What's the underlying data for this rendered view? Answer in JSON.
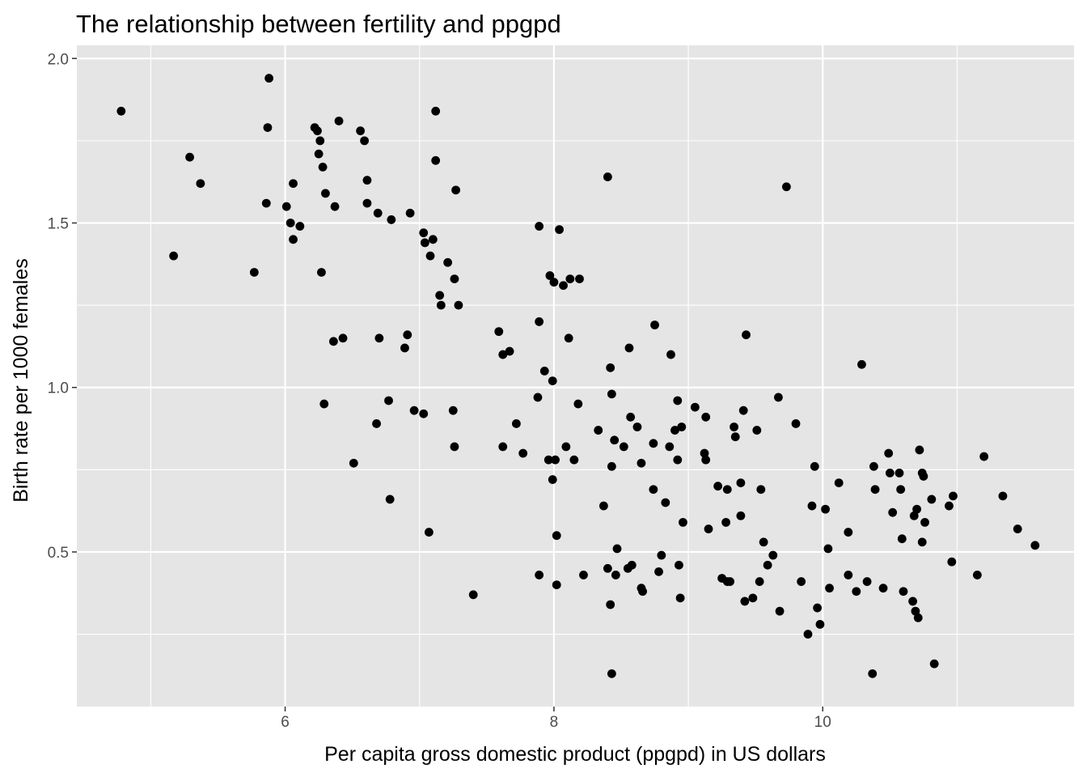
{
  "chart_data": {
    "type": "scatter",
    "title": "The relationship between fertility and ppgpd",
    "xlabel": "Per capita gross domestic product (ppgpd) in US dollars",
    "ylabel": "Birth rate per 1000 females",
    "xlim": [
      4.45,
      11.87
    ],
    "ylim": [
      0.03,
      2.04
    ],
    "xticks": [
      6,
      8,
      10
    ],
    "xtick_labels": [
      "6",
      "8",
      "10"
    ],
    "yticks": [
      0.5,
      1.0,
      1.5,
      2.0
    ],
    "ytick_labels": [
      "0.5",
      "1.0",
      "1.5",
      "2.0"
    ],
    "x_minor": [
      5,
      7,
      9,
      11
    ],
    "y_minor": [
      0.25,
      0.75,
      1.25,
      1.75
    ],
    "grid": true,
    "legend": "none",
    "colors": {
      "panel": "#e5e5e5",
      "grid": "#ffffff",
      "point": "#000000",
      "tick": "#4d4d4d"
    },
    "points": [
      [
        4.78,
        1.84
      ],
      [
        5.17,
        1.4
      ],
      [
        5.29,
        1.7
      ],
      [
        5.37,
        1.62
      ],
      [
        5.77,
        1.35
      ],
      [
        5.86,
        1.56
      ],
      [
        5.87,
        1.79
      ],
      [
        5.88,
        1.94
      ],
      [
        6.01,
        1.55
      ],
      [
        6.04,
        1.5
      ],
      [
        6.06,
        1.45
      ],
      [
        6.06,
        1.62
      ],
      [
        6.11,
        1.49
      ],
      [
        6.22,
        1.79
      ],
      [
        6.24,
        1.78
      ],
      [
        6.25,
        1.71
      ],
      [
        6.26,
        1.75
      ],
      [
        6.27,
        1.35
      ],
      [
        6.28,
        1.67
      ],
      [
        6.29,
        0.95
      ],
      [
        6.3,
        1.59
      ],
      [
        6.36,
        1.14
      ],
      [
        6.37,
        1.55
      ],
      [
        6.4,
        1.81
      ],
      [
        6.43,
        1.15
      ],
      [
        6.51,
        0.77
      ],
      [
        6.56,
        1.78
      ],
      [
        6.59,
        1.75
      ],
      [
        6.61,
        1.63
      ],
      [
        6.61,
        1.56
      ],
      [
        6.68,
        0.89
      ],
      [
        6.69,
        1.53
      ],
      [
        6.7,
        1.15
      ],
      [
        6.77,
        0.96
      ],
      [
        6.78,
        0.66
      ],
      [
        6.79,
        1.51
      ],
      [
        6.89,
        1.12
      ],
      [
        6.91,
        1.16
      ],
      [
        6.93,
        1.53
      ],
      [
        6.96,
        0.93
      ],
      [
        7.03,
        0.92
      ],
      [
        7.03,
        1.47
      ],
      [
        7.04,
        1.44
      ],
      [
        7.07,
        0.56
      ],
      [
        7.08,
        1.4
      ],
      [
        7.1,
        1.45
      ],
      [
        7.12,
        1.84
      ],
      [
        7.12,
        1.69
      ],
      [
        7.15,
        1.28
      ],
      [
        7.16,
        1.25
      ],
      [
        7.21,
        1.38
      ],
      [
        7.25,
        0.93
      ],
      [
        7.26,
        0.82
      ],
      [
        7.26,
        1.33
      ],
      [
        7.27,
        1.6
      ],
      [
        7.29,
        1.25
      ],
      [
        7.4,
        0.37
      ],
      [
        7.59,
        1.17
      ],
      [
        7.62,
        0.82
      ],
      [
        7.62,
        1.1
      ],
      [
        7.67,
        1.11
      ],
      [
        7.72,
        0.89
      ],
      [
        7.77,
        0.8
      ],
      [
        7.88,
        0.97
      ],
      [
        7.89,
        1.49
      ],
      [
        7.89,
        1.2
      ],
      [
        7.89,
        0.43
      ],
      [
        7.93,
        1.05
      ],
      [
        7.96,
        0.78
      ],
      [
        7.97,
        1.34
      ],
      [
        7.99,
        1.02
      ],
      [
        7.99,
        0.72
      ],
      [
        8.0,
        1.32
      ],
      [
        8.01,
        0.78
      ],
      [
        8.02,
        0.55
      ],
      [
        8.02,
        0.4
      ],
      [
        8.04,
        1.48
      ],
      [
        8.07,
        1.31
      ],
      [
        8.09,
        0.82
      ],
      [
        8.11,
        1.15
      ],
      [
        8.12,
        1.33
      ],
      [
        8.15,
        0.78
      ],
      [
        8.18,
        0.95
      ],
      [
        8.19,
        1.33
      ],
      [
        8.22,
        0.43
      ],
      [
        8.33,
        0.87
      ],
      [
        8.37,
        0.64
      ],
      [
        8.4,
        1.64
      ],
      [
        8.4,
        0.45
      ],
      [
        8.42,
        0.34
      ],
      [
        8.42,
        1.06
      ],
      [
        8.43,
        0.98
      ],
      [
        8.43,
        0.76
      ],
      [
        8.43,
        0.13
      ],
      [
        8.45,
        0.84
      ],
      [
        8.46,
        0.43
      ],
      [
        8.47,
        0.51
      ],
      [
        8.52,
        0.82
      ],
      [
        8.55,
        0.45
      ],
      [
        8.56,
        1.12
      ],
      [
        8.57,
        0.91
      ],
      [
        8.58,
        0.46
      ],
      [
        8.62,
        0.88
      ],
      [
        8.65,
        0.77
      ],
      [
        8.65,
        0.39
      ],
      [
        8.66,
        0.38
      ],
      [
        8.74,
        0.69
      ],
      [
        8.74,
        0.83
      ],
      [
        8.75,
        1.19
      ],
      [
        8.78,
        0.44
      ],
      [
        8.8,
        0.49
      ],
      [
        8.83,
        0.65
      ],
      [
        8.86,
        0.82
      ],
      [
        8.87,
        1.1
      ],
      [
        8.9,
        0.87
      ],
      [
        8.92,
        0.96
      ],
      [
        8.92,
        0.78
      ],
      [
        8.93,
        0.46
      ],
      [
        8.94,
        0.36
      ],
      [
        8.95,
        0.88
      ],
      [
        8.96,
        0.59
      ],
      [
        9.05,
        0.94
      ],
      [
        9.12,
        0.8
      ],
      [
        9.13,
        0.91
      ],
      [
        9.13,
        0.78
      ],
      [
        9.15,
        0.57
      ],
      [
        9.22,
        0.7
      ],
      [
        9.25,
        0.42
      ],
      [
        9.28,
        0.59
      ],
      [
        9.29,
        0.41
      ],
      [
        9.29,
        0.69
      ],
      [
        9.31,
        0.41
      ],
      [
        9.34,
        0.88
      ],
      [
        9.35,
        0.85
      ],
      [
        9.39,
        0.71
      ],
      [
        9.39,
        0.61
      ],
      [
        9.41,
        0.93
      ],
      [
        9.42,
        0.35
      ],
      [
        9.43,
        1.16
      ],
      [
        9.48,
        0.36
      ],
      [
        9.51,
        0.87
      ],
      [
        9.53,
        0.41
      ],
      [
        9.54,
        0.69
      ],
      [
        9.56,
        0.53
      ],
      [
        9.59,
        0.46
      ],
      [
        9.63,
        0.49
      ],
      [
        9.67,
        0.97
      ],
      [
        9.68,
        0.32
      ],
      [
        9.73,
        1.61
      ],
      [
        9.8,
        0.89
      ],
      [
        9.84,
        0.41
      ],
      [
        9.89,
        0.25
      ],
      [
        9.92,
        0.64
      ],
      [
        9.94,
        0.76
      ],
      [
        9.96,
        0.33
      ],
      [
        9.98,
        0.28
      ],
      [
        10.02,
        0.63
      ],
      [
        10.04,
        0.51
      ],
      [
        10.05,
        0.39
      ],
      [
        10.12,
        0.71
      ],
      [
        10.19,
        0.56
      ],
      [
        10.19,
        0.43
      ],
      [
        10.25,
        0.38
      ],
      [
        10.29,
        1.07
      ],
      [
        10.33,
        0.41
      ],
      [
        10.37,
        0.13
      ],
      [
        10.38,
        0.76
      ],
      [
        10.39,
        0.69
      ],
      [
        10.45,
        0.39
      ],
      [
        10.49,
        0.8
      ],
      [
        10.5,
        0.74
      ],
      [
        10.52,
        0.62
      ],
      [
        10.57,
        0.74
      ],
      [
        10.58,
        0.69
      ],
      [
        10.59,
        0.54
      ],
      [
        10.6,
        0.38
      ],
      [
        10.67,
        0.35
      ],
      [
        10.68,
        0.61
      ],
      [
        10.69,
        0.32
      ],
      [
        10.7,
        0.63
      ],
      [
        10.71,
        0.3
      ],
      [
        10.72,
        0.81
      ],
      [
        10.74,
        0.53
      ],
      [
        10.74,
        0.74
      ],
      [
        10.75,
        0.73
      ],
      [
        10.76,
        0.59
      ],
      [
        10.81,
        0.66
      ],
      [
        10.83,
        0.16
      ],
      [
        10.94,
        0.64
      ],
      [
        10.96,
        0.47
      ],
      [
        10.97,
        0.67
      ],
      [
        11.15,
        0.43
      ],
      [
        11.2,
        0.79
      ],
      [
        11.34,
        0.67
      ],
      [
        11.45,
        0.57
      ],
      [
        11.58,
        0.52
      ]
    ]
  }
}
